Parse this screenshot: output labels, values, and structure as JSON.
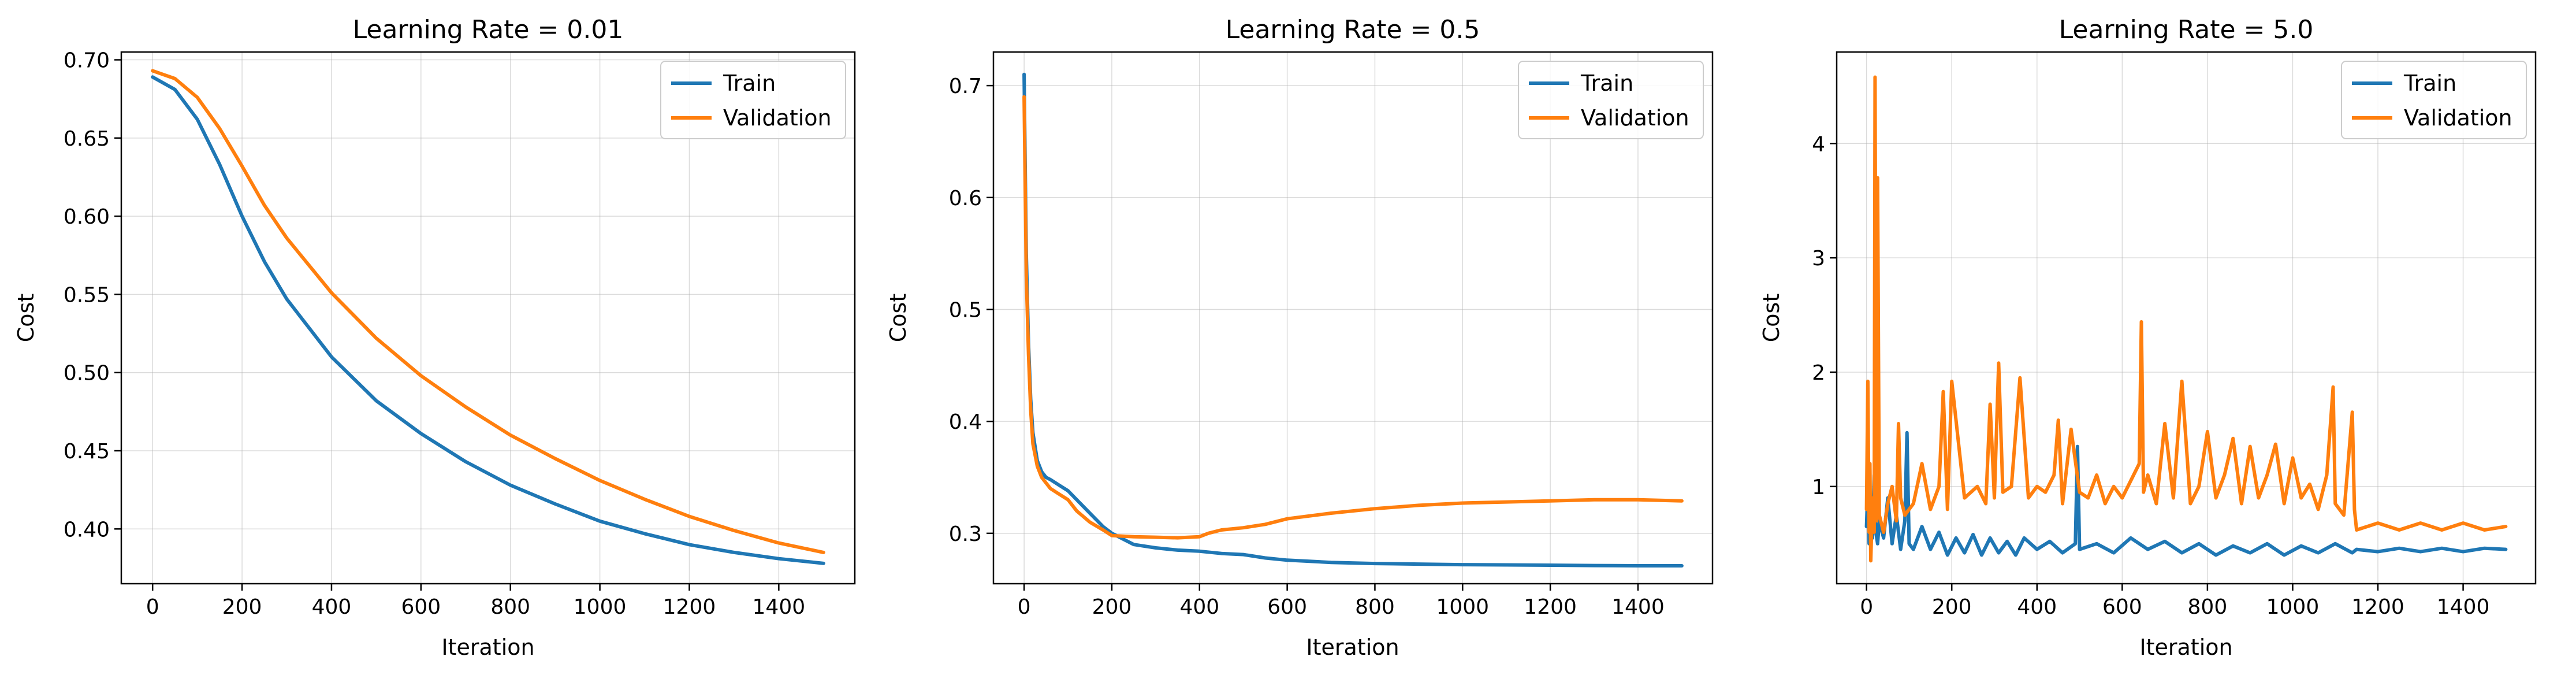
{
  "colors": {
    "train": "#1f77b4",
    "validation": "#ff7f0e",
    "grid": "#b0b0b0"
  },
  "chart_data": [
    {
      "type": "line",
      "title": "Learning Rate = 0.01",
      "xlabel": "Iteration",
      "ylabel": "Cost",
      "xlim": [
        -70,
        1570
      ],
      "ylim": [
        0.365,
        0.705
      ],
      "xticks": [
        0,
        200,
        400,
        600,
        800,
        1000,
        1200,
        1400
      ],
      "yticks": [
        0.4,
        0.45,
        0.5,
        0.55,
        0.6,
        0.65,
        0.7
      ],
      "ytick_decimals": 2,
      "grid": true,
      "legend": "top-right",
      "series": [
        {
          "name": "Train",
          "color": "#1f77b4",
          "x": [
            0,
            50,
            100,
            150,
            200,
            250,
            300,
            400,
            500,
            600,
            700,
            800,
            900,
            1000,
            1100,
            1200,
            1300,
            1400,
            1500
          ],
          "y": [
            0.689,
            0.681,
            0.662,
            0.633,
            0.6,
            0.571,
            0.547,
            0.51,
            0.482,
            0.461,
            0.443,
            0.428,
            0.416,
            0.405,
            0.397,
            0.39,
            0.385,
            0.381,
            0.378
          ]
        },
        {
          "name": "Validation",
          "color": "#ff7f0e",
          "x": [
            0,
            50,
            100,
            150,
            200,
            250,
            300,
            400,
            500,
            600,
            700,
            800,
            900,
            1000,
            1100,
            1200,
            1300,
            1400,
            1500
          ],
          "y": [
            0.693,
            0.688,
            0.676,
            0.656,
            0.632,
            0.607,
            0.586,
            0.551,
            0.522,
            0.498,
            0.478,
            0.46,
            0.445,
            0.431,
            0.419,
            0.408,
            0.399,
            0.391,
            0.385
          ]
        }
      ]
    },
    {
      "type": "line",
      "title": "Learning Rate = 0.5",
      "xlabel": "Iteration",
      "ylabel": "Cost",
      "xlim": [
        -70,
        1570
      ],
      "ylim": [
        0.255,
        0.73
      ],
      "xticks": [
        0,
        200,
        400,
        600,
        800,
        1000,
        1200,
        1400
      ],
      "yticks": [
        0.3,
        0.4,
        0.5,
        0.6,
        0.7
      ],
      "ytick_decimals": 1,
      "grid": true,
      "legend": "top-right",
      "series": [
        {
          "name": "Train",
          "color": "#1f77b4",
          "x": [
            0,
            2,
            5,
            10,
            15,
            20,
            30,
            40,
            50,
            60,
            80,
            100,
            120,
            150,
            180,
            200,
            250,
            300,
            350,
            400,
            450,
            500,
            550,
            600,
            700,
            800,
            900,
            1000,
            1100,
            1200,
            1300,
            1400,
            1500
          ],
          "y": [
            0.71,
            0.64,
            0.55,
            0.47,
            0.42,
            0.39,
            0.365,
            0.355,
            0.35,
            0.348,
            0.343,
            0.338,
            0.33,
            0.318,
            0.306,
            0.3,
            0.29,
            0.287,
            0.285,
            0.284,
            0.282,
            0.281,
            0.278,
            0.276,
            0.274,
            0.273,
            0.2725,
            0.272,
            0.2718,
            0.2715,
            0.2712,
            0.271,
            0.271
          ]
        },
        {
          "name": "Validation",
          "color": "#ff7f0e",
          "x": [
            0,
            2,
            5,
            10,
            15,
            20,
            30,
            40,
            50,
            60,
            80,
            100,
            120,
            150,
            180,
            200,
            250,
            300,
            350,
            400,
            420,
            450,
            500,
            550,
            600,
            700,
            800,
            900,
            1000,
            1100,
            1200,
            1300,
            1400,
            1500
          ],
          "y": [
            0.69,
            0.62,
            0.53,
            0.46,
            0.41,
            0.38,
            0.36,
            0.35,
            0.345,
            0.34,
            0.335,
            0.33,
            0.32,
            0.31,
            0.303,
            0.298,
            0.297,
            0.2965,
            0.296,
            0.297,
            0.3,
            0.303,
            0.305,
            0.308,
            0.313,
            0.318,
            0.322,
            0.325,
            0.327,
            0.328,
            0.329,
            0.33,
            0.33,
            0.329
          ]
        }
      ]
    },
    {
      "type": "line",
      "title": "Learning Rate = 5.0",
      "xlabel": "Iteration",
      "ylabel": "Cost",
      "xlim": [
        -70,
        1570
      ],
      "ylim": [
        0.15,
        4.8
      ],
      "xticks": [
        0,
        200,
        400,
        600,
        800,
        1000,
        1200,
        1400
      ],
      "yticks": [
        1,
        2,
        3,
        4
      ],
      "ytick_decimals": 0,
      "grid": true,
      "legend": "top-right",
      "series": [
        {
          "name": "Train",
          "color": "#1f77b4",
          "x": [
            0,
            3,
            6,
            10,
            14,
            18,
            22,
            26,
            30,
            40,
            50,
            60,
            70,
            80,
            90,
            95,
            100,
            110,
            130,
            150,
            170,
            190,
            210,
            230,
            250,
            270,
            290,
            310,
            330,
            350,
            370,
            400,
            430,
            460,
            490,
            495,
            500,
            540,
            580,
            620,
            660,
            700,
            740,
            780,
            820,
            860,
            900,
            940,
            980,
            1020,
            1060,
            1100,
            1140,
            1150,
            1200,
            1250,
            1300,
            1350,
            1400,
            1450,
            1500
          ],
          "y": [
            0.65,
            1.0,
            0.5,
            0.8,
            0.55,
            1.1,
            0.6,
            0.5,
            0.7,
            0.55,
            0.9,
            0.5,
            0.75,
            0.45,
            0.7,
            1.47,
            0.5,
            0.45,
            0.65,
            0.45,
            0.6,
            0.4,
            0.55,
            0.42,
            0.58,
            0.4,
            0.55,
            0.42,
            0.52,
            0.4,
            0.55,
            0.45,
            0.52,
            0.42,
            0.5,
            1.35,
            0.45,
            0.5,
            0.42,
            0.55,
            0.45,
            0.52,
            0.42,
            0.5,
            0.4,
            0.48,
            0.42,
            0.5,
            0.4,
            0.48,
            0.42,
            0.5,
            0.42,
            0.45,
            0.43,
            0.46,
            0.43,
            0.46,
            0.43,
            0.46,
            0.45
          ]
        },
        {
          "name": "Validation",
          "color": "#ff7f0e",
          "x": [
            0,
            3,
            6,
            8,
            10,
            14,
            18,
            20,
            22,
            24,
            26,
            30,
            40,
            50,
            60,
            70,
            75,
            80,
            90,
            110,
            130,
            150,
            170,
            180,
            190,
            200,
            230,
            260,
            280,
            290,
            300,
            310,
            320,
            340,
            360,
            380,
            400,
            420,
            440,
            450,
            460,
            480,
            500,
            520,
            540,
            560,
            580,
            600,
            620,
            640,
            645,
            650,
            660,
            680,
            700,
            720,
            740,
            760,
            780,
            800,
            820,
            840,
            860,
            880,
            900,
            920,
            940,
            960,
            980,
            1000,
            1020,
            1040,
            1060,
            1080,
            1095,
            1100,
            1120,
            1140,
            1145,
            1150,
            1200,
            1250,
            1300,
            1350,
            1400,
            1450,
            1500
          ],
          "y": [
            0.8,
            1.92,
            0.6,
            1.2,
            0.35,
            0.9,
            0.6,
            4.58,
            2.0,
            0.7,
            3.7,
            0.75,
            0.6,
            0.85,
            1.0,
            0.7,
            1.55,
            0.9,
            0.75,
            0.85,
            1.2,
            0.8,
            1.0,
            1.83,
            0.8,
            1.92,
            0.9,
            1.0,
            0.85,
            1.72,
            0.9,
            2.08,
            0.95,
            1.0,
            1.95,
            0.9,
            1.0,
            0.95,
            1.1,
            1.58,
            0.85,
            1.5,
            0.95,
            0.9,
            1.1,
            0.85,
            1.0,
            0.9,
            1.05,
            1.2,
            2.44,
            0.95,
            1.1,
            0.85,
            1.55,
            0.9,
            1.92,
            0.85,
            1.0,
            1.48,
            0.9,
            1.1,
            1.42,
            0.85,
            1.35,
            0.9,
            1.1,
            1.37,
            0.85,
            1.25,
            0.9,
            1.02,
            0.8,
            1.1,
            1.87,
            0.85,
            0.75,
            1.65,
            0.8,
            0.62,
            0.68,
            0.62,
            0.68,
            0.62,
            0.68,
            0.62,
            0.65
          ]
        }
      ]
    }
  ]
}
